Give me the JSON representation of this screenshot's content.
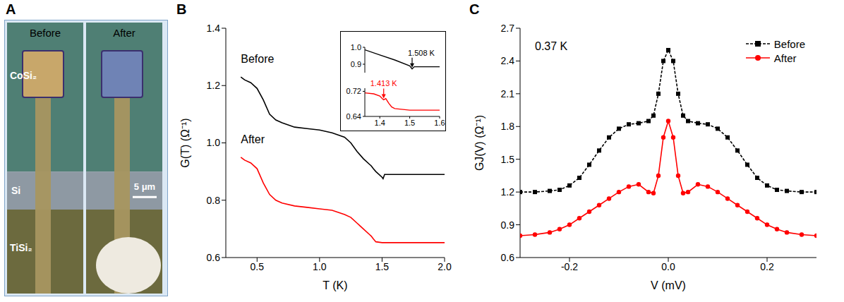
{
  "panel_a": {
    "label": "A",
    "images": [
      {
        "title": "Before"
      },
      {
        "title": "After"
      }
    ],
    "regions": [
      "CoSi₂",
      "Si",
      "TiSi₂"
    ],
    "scale_bar": "5 μm"
  },
  "chart_data": [
    {
      "panel_label": "B",
      "type": "line",
      "x_label": "T (K)",
      "y_label": "G(T) (Ω⁻¹)",
      "xlim": [
        0.25,
        2.0
      ],
      "xticks": [
        0.5,
        {
          "value": 1,
          "label": "1.0"
        },
        1.5,
        {
          "value": 2,
          "label": "2.0"
        }
      ],
      "ylim": [
        0.6,
        1.4
      ],
      "yticks": [
        0.6,
        0.8,
        {
          "value": 1,
          "label": "1.0"
        },
        1.2,
        1.4
      ],
      "x": [
        0.37,
        0.4,
        0.45,
        0.5,
        0.55,
        0.6,
        0.65,
        0.7,
        0.8,
        0.9,
        1.0,
        1.1,
        1.2,
        1.25,
        1.3,
        1.35,
        1.4,
        1.413,
        1.43,
        1.45,
        1.5,
        1.508,
        1.52,
        1.6,
        1.8,
        2.0
      ],
      "series": [
        {
          "name": "Before",
          "color": "#000000",
          "line_style": "solid",
          "values": [
            1.23,
            1.22,
            1.21,
            1.19,
            1.15,
            1.1,
            1.08,
            1.07,
            1.055,
            1.05,
            1.045,
            1.035,
            1.02,
            1.0,
            0.97,
            0.945,
            0.925,
            0.92,
            0.91,
            0.9,
            0.88,
            0.875,
            0.89,
            0.89,
            0.89,
            0.89
          ]
        },
        {
          "name": "After",
          "color": "#ff0000",
          "line_style": "solid",
          "values": [
            0.95,
            0.94,
            0.93,
            0.91,
            0.86,
            0.82,
            0.8,
            0.79,
            0.78,
            0.775,
            0.77,
            0.765,
            0.75,
            0.74,
            0.72,
            0.7,
            0.68,
            0.675,
            0.665,
            0.655,
            0.652,
            0.652,
            0.652,
            0.652,
            0.652,
            0.652
          ]
        }
      ],
      "annotations": [
        {
          "text": "Before",
          "x": 0.37,
          "y": 1.28,
          "color": "#000000"
        },
        {
          "text": "After",
          "x": 0.37,
          "y": 1.0,
          "color": "#000000"
        }
      ],
      "inset": {
        "type": "line",
        "xlim": [
          1.35,
          1.6
        ],
        "xticks": [
          1.4,
          1.5,
          1.6
        ],
        "panels": [
          {
            "ylim": [
              0.85,
              1.0
            ],
            "yticks": [
              0.9,
              {
                "value": 1,
                "label": "1.0"
              }
            ],
            "tick_labels": "y",
            "x": [
              1.35,
              1.4,
              1.45,
              1.5,
              1.508,
              1.515,
              1.55,
              1.6
            ],
            "series": [
              {
                "name": "Before",
                "color": "#000000",
                "values": [
                  0.985,
                  0.955,
                  0.925,
                  0.89,
                  0.872,
                  0.885,
                  0.885,
                  0.885
                ]
              }
            ],
            "annotations": [
              {
                "text": "1.508 K",
                "x": 1.508,
                "y": 0.872,
                "color": "#000000",
                "marker": "arrow"
              }
            ]
          },
          {
            "ylim": [
              0.64,
              0.73
            ],
            "yticks": [
              0.64,
              0.72
            ],
            "x": [
              1.35,
              1.38,
              1.4,
              1.41,
              1.413,
              1.42,
              1.43,
              1.44,
              1.45,
              1.5,
              1.55,
              1.6
            ],
            "series": [
              {
                "name": "After",
                "color": "#ff0000",
                "values": [
                  0.715,
                  0.712,
                  0.705,
                  0.695,
                  0.693,
                  0.697,
                  0.682,
                  0.67,
                  0.665,
                  0.66,
                  0.66,
                  0.66
                ]
              }
            ],
            "annotations": [
              {
                "text": "1.413 K",
                "x": 1.413,
                "y": 0.693,
                "color": "#ff0000",
                "marker": "arrow"
              }
            ]
          }
        ]
      }
    },
    {
      "panel_label": "C",
      "type": "line",
      "x_label": "V (mV)",
      "y_label": "GJ(V) (Ω⁻¹)",
      "xlim": [
        -0.3,
        0.3
      ],
      "xticks": [
        -0.2,
        {
          "value": 0,
          "label": "0.0"
        },
        0.2
      ],
      "ylim": [
        0.6,
        2.7
      ],
      "yticks": [
        0.6,
        0.9,
        1.2,
        1.5,
        1.8,
        2.1,
        2.4,
        2.7
      ],
      "legend": "upper right",
      "x": [
        -0.3,
        -0.27,
        -0.24,
        -0.22,
        -0.2,
        -0.18,
        -0.16,
        -0.14,
        -0.12,
        -0.1,
        -0.08,
        -0.06,
        -0.04,
        -0.03,
        -0.02,
        -0.01,
        0,
        0.01,
        0.02,
        0.03,
        0.04,
        0.06,
        0.08,
        0.1,
        0.12,
        0.14,
        0.16,
        0.18,
        0.2,
        0.22,
        0.24,
        0.27,
        0.3
      ],
      "series": [
        {
          "name": "Before",
          "color": "#000000",
          "marker": "square",
          "line_style": "dashed",
          "values": [
            1.2,
            1.2,
            1.21,
            1.22,
            1.26,
            1.33,
            1.45,
            1.58,
            1.7,
            1.78,
            1.82,
            1.83,
            1.85,
            1.9,
            2.1,
            2.4,
            2.5,
            2.4,
            2.1,
            1.9,
            1.85,
            1.83,
            1.82,
            1.78,
            1.7,
            1.58,
            1.45,
            1.33,
            1.26,
            1.22,
            1.21,
            1.2,
            1.2
          ]
        },
        {
          "name": "After",
          "color": "#ff0000",
          "marker": "circle",
          "line_style": "solid",
          "values": [
            0.8,
            0.81,
            0.83,
            0.86,
            0.9,
            0.96,
            1.02,
            1.08,
            1.14,
            1.2,
            1.25,
            1.27,
            1.2,
            1.19,
            1.35,
            1.7,
            1.85,
            1.7,
            1.35,
            1.19,
            1.2,
            1.27,
            1.25,
            1.2,
            1.14,
            1.08,
            1.02,
            0.96,
            0.9,
            0.86,
            0.83,
            0.81,
            0.8
          ]
        }
      ],
      "annotations": [
        {
          "text": "0.37 K",
          "x": -0.27,
          "y": 2.5,
          "color": "#000000"
        }
      ]
    }
  ]
}
